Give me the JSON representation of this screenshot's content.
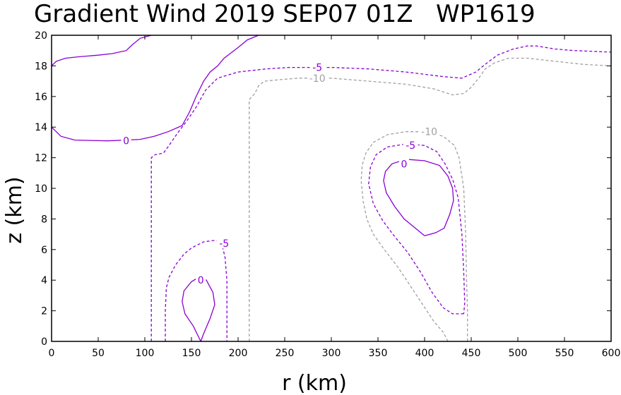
{
  "chart_data": {
    "type": "contour",
    "title": "Gradient Wind 2019 SEP07 01Z   WP1619",
    "xlabel": "r (km)",
    "ylabel": "z (km)",
    "xlim": [
      0,
      600
    ],
    "ylim": [
      0,
      20
    ],
    "xticks": [
      "0",
      "50",
      "100",
      "150",
      "200",
      "250",
      "300",
      "350",
      "400",
      "450",
      "500",
      "550",
      "600"
    ],
    "yticks": [
      "0",
      "2",
      "4",
      "6",
      "8",
      "10",
      "12",
      "14",
      "16",
      "18",
      "20"
    ],
    "grid": false,
    "levels": [
      {
        "name": "0",
        "color": "#8a00d4",
        "dash": "none",
        "lines": [
          {
            "label": "0",
            "label_at": [
              80,
              13.1
            ],
            "points": [
              [
                0,
                18
              ],
              [
                5,
                18.3
              ],
              [
                15,
                18.5
              ],
              [
                30,
                18.6
              ],
              [
                50,
                18.7
              ],
              [
                65,
                18.8
              ],
              [
                80,
                19
              ],
              [
                87,
                19.4
              ],
              [
                95,
                19.8
              ],
              [
                107,
                20
              ]
            ]
          },
          {
            "label": "0",
            "label_at": [
              80,
              13.1
            ],
            "points": [
              [
                0,
                14
              ],
              [
                10,
                13.4
              ],
              [
                25,
                13.15
              ],
              [
                60,
                13.1
              ],
              [
                95,
                13.2
              ],
              [
                110,
                13.4
              ],
              [
                125,
                13.7
              ],
              [
                140,
                14.1
              ],
              [
                148,
                15
              ],
              [
                155,
                16
              ],
              [
                163,
                17
              ],
              [
                170,
                17.6
              ],
              [
                178,
                18
              ],
              [
                185,
                18.5
              ],
              [
                200,
                19.2
              ],
              [
                210,
                19.7
              ],
              [
                222,
                20
              ]
            ]
          },
          {
            "label": "0",
            "label_at": [
              160,
              4
            ],
            "points": [
              [
                160,
                0
              ],
              [
                152,
                1
              ],
              [
                143,
                1.8
              ],
              [
                140,
                2.6
              ],
              [
                142,
                3.3
              ],
              [
                150,
                3.9
              ],
              [
                158,
                4.2
              ],
              [
                166,
                4
              ],
              [
                173,
                3.2
              ],
              [
                175,
                2.4
              ],
              [
                170,
                1.5
              ],
              [
                163,
                0.5
              ],
              [
                160,
                0
              ]
            ]
          },
          {
            "label": "0",
            "label_at": [
              378,
              11.6
            ],
            "points": [
              [
                400,
                6.9
              ],
              [
                390,
                7.4
              ],
              [
                378,
                8
              ],
              [
                368,
                8.8
              ],
              [
                359,
                9.7
              ],
              [
                356,
                10.5
              ],
              [
                358,
                11.1
              ],
              [
                365,
                11.6
              ],
              [
                380,
                11.9
              ],
              [
                400,
                11.8
              ],
              [
                416,
                11.5
              ],
              [
                425,
                10.8
              ],
              [
                430,
                10
              ],
              [
                431,
                9.2
              ],
              [
                427,
                8.3
              ],
              [
                421,
                7.4
              ],
              [
                412,
                7.1
              ],
              [
                400,
                6.9
              ]
            ]
          }
        ]
      },
      {
        "name": "-5",
        "color": "#8a00d4",
        "dash": "4,3",
        "lines": [
          {
            "label": "-5",
            "label_at": [
              285,
              17.9
            ],
            "points": [
              [
                107,
                0
              ],
              [
                107,
                4
              ],
              [
                107,
                8
              ],
              [
                107,
                12
              ],
              [
                111,
                12.2
              ],
              [
                120,
                12.3
              ],
              [
                126,
                12.8
              ],
              [
                135,
                13.6
              ],
              [
                145,
                14.4
              ],
              [
                155,
                15.3
              ],
              [
                165,
                16.4
              ],
              [
                178,
                17.2
              ],
              [
                200,
                17.6
              ],
              [
                230,
                17.8
              ],
              [
                255,
                17.9
              ],
              [
                300,
                17.9
              ],
              [
                340,
                17.8
              ],
              [
                380,
                17.6
              ],
              [
                420,
                17.3
              ],
              [
                440,
                17.2
              ],
              [
                455,
                17.6
              ],
              [
                465,
                18.1
              ],
              [
                478,
                18.7
              ],
              [
                495,
                19.1
              ],
              [
                510,
                19.3
              ],
              [
                520,
                19.3
              ],
              [
                540,
                19.1
              ],
              [
                560,
                19
              ],
              [
                600,
                18.9
              ]
            ]
          },
          {
            "label": "-5",
            "label_at": [
              185,
              6.4
            ],
            "points": [
              [
                122,
                0
              ],
              [
                122,
                2
              ],
              [
                123,
                3.5
              ],
              [
                126,
                4.2
              ],
              [
                133,
                5
              ],
              [
                142,
                5.7
              ],
              [
                150,
                6.1
              ],
              [
                163,
                6.5
              ],
              [
                175,
                6.6
              ],
              [
                182,
                6.5
              ],
              [
                186,
                5.5
              ],
              [
                188,
                4
              ],
              [
                188,
                2
              ],
              [
                188,
                0
              ]
            ]
          },
          {
            "label": "-5",
            "label_at": [
              385,
              12.8
            ],
            "points": [
              [
                442,
                1.8
              ],
              [
                430,
                1.8
              ],
              [
                420,
                2.2
              ],
              [
                408,
                3.2
              ],
              [
                396,
                4.5
              ],
              [
                382,
                5.8
              ],
              [
                366,
                7
              ],
              [
                355,
                7.9
              ],
              [
                345,
                9
              ],
              [
                340,
                10.3
              ],
              [
                342,
                11.4
              ],
              [
                348,
                12.2
              ],
              [
                360,
                12.7
              ],
              [
                380,
                12.9
              ],
              [
                400,
                12.8
              ],
              [
                413,
                12.4
              ],
              [
                422,
                11.6
              ],
              [
                430,
                10.6
              ],
              [
                436,
                9.4
              ],
              [
                440,
                7
              ],
              [
                442,
                4.5
              ],
              [
                443,
                2.5
              ],
              [
                442,
                1.8
              ]
            ]
          }
        ]
      },
      {
        "name": "-10",
        "color": "#a0a0a0",
        "dash": "4,3",
        "lines": [
          {
            "label": "-10",
            "label_at": [
              285,
              17.2
            ],
            "points": [
              [
                212,
                0
              ],
              [
                212,
                4
              ],
              [
                212,
                8
              ],
              [
                212,
                12
              ],
              [
                212,
                15.8
              ],
              [
                218,
                16.2
              ],
              [
                222,
                16.7
              ],
              [
                228,
                17
              ],
              [
                245,
                17.1
              ],
              [
                265,
                17.2
              ],
              [
                300,
                17.2
              ],
              [
                340,
                17
              ],
              [
                380,
                16.8
              ],
              [
                410,
                16.5
              ],
              [
                430,
                16.1
              ],
              [
                442,
                16.2
              ],
              [
                450,
                16.6
              ],
              [
                458,
                17.2
              ],
              [
                465,
                17.8
              ],
              [
                475,
                18.2
              ],
              [
                490,
                18.5
              ],
              [
                510,
                18.5
              ],
              [
                540,
                18.3
              ],
              [
                570,
                18.1
              ],
              [
                600,
                18
              ]
            ]
          },
          {
            "label": "-10",
            "label_at": [
              405,
              13.7
            ],
            "points": [
              [
                425,
                0
              ],
              [
                420,
                0.6
              ],
              [
                410,
                1.3
              ],
              [
                398,
                2.4
              ],
              [
                385,
                3.6
              ],
              [
                372,
                4.8
              ],
              [
                358,
                5.9
              ],
              [
                345,
                7
              ],
              [
                338,
                8
              ],
              [
                334,
                9.2
              ],
              [
                332,
                10.5
              ],
              [
                333,
                11.5
              ],
              [
                337,
                12.3
              ],
              [
                345,
                13
              ],
              [
                360,
                13.5
              ],
              [
                380,
                13.7
              ],
              [
                400,
                13.7
              ],
              [
                420,
                13.4
              ],
              [
                432,
                12.8
              ],
              [
                437,
                12
              ],
              [
                442,
                10
              ],
              [
                444,
                7
              ],
              [
                445,
                4
              ],
              [
                446,
                2
              ],
              [
                446,
                0
              ]
            ]
          }
        ]
      }
    ]
  }
}
